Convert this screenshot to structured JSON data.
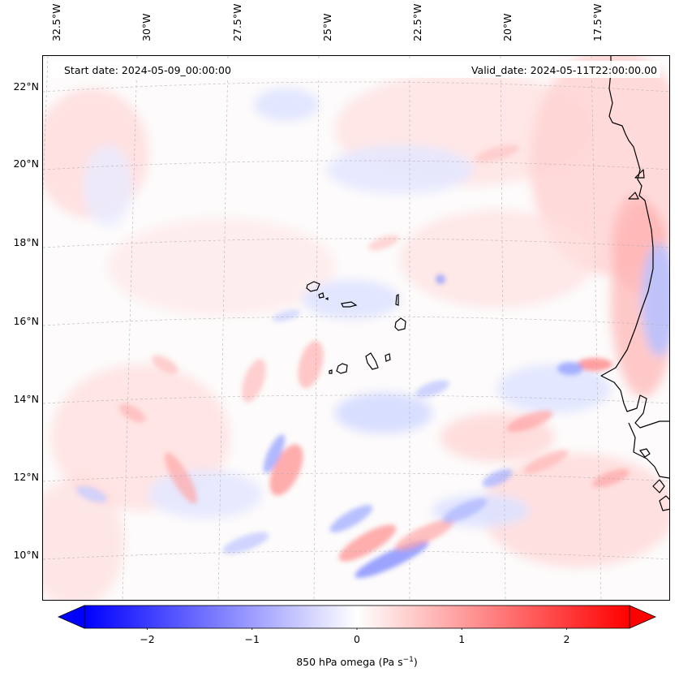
{
  "header": {
    "start_date": "Start date: 2024-05-09_00:00:00",
    "valid_date": "Valid_date: 2024-05-11T22:00:00.00"
  },
  "map": {
    "longitude_labels": [
      "32.5°W",
      "30°W",
      "27.5°W",
      "25°W",
      "22.5°W",
      "20°W",
      "17.5°W"
    ],
    "latitude_labels": [
      "22°N",
      "20°N",
      "18°N",
      "16°N",
      "14°N",
      "12°N",
      "10°N"
    ],
    "field": "850 hPa omega",
    "colormap": "bwr",
    "colors": {
      "negative": "#0000ff",
      "zero": "#ffffff",
      "positive": "#ff0000",
      "coastline": "#000000",
      "gridline": "#b0b0b0"
    }
  },
  "colorbar": {
    "range": [
      -2.6,
      2.6
    ],
    "ticks": [
      "−2",
      "−1",
      "0",
      "1",
      "2"
    ],
    "tick_values": [
      -2,
      -1,
      0,
      1,
      2
    ],
    "label_main": "850 hPa omega (Pa s",
    "label_sup": "−1",
    "label_end": ")",
    "extend": "both"
  }
}
